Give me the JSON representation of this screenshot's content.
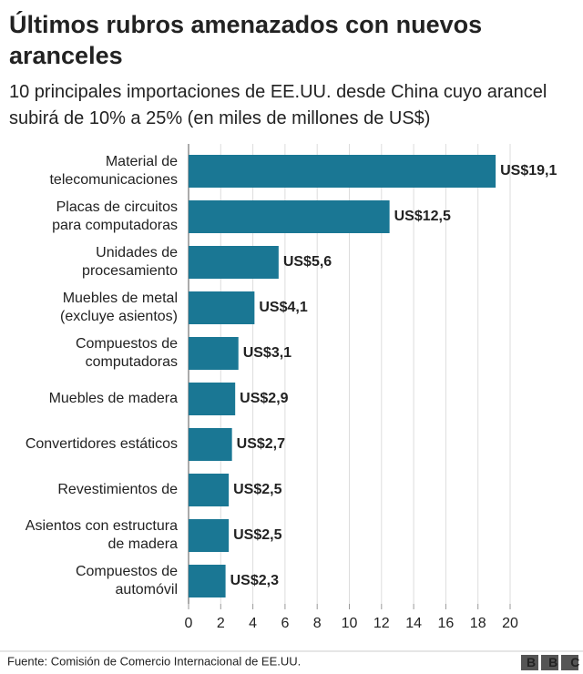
{
  "chart_data": {
    "type": "bar",
    "orientation": "horizontal",
    "title": "Últimos rubros amenazados con nuevos aranceles",
    "subtitle": "10 principales importaciones de EE.UU. desde China cuyo arancel subirá de 10% a 25% (en miles de millones de US$)",
    "categories": [
      "Material de\ntelecomunicaciones",
      "Placas de circuitos\npara computadoras",
      "Unidades de\nprocesamiento",
      "Muebles de metal\n(excluye asientos)",
      "Compuestos de\ncomputadoras",
      "Muebles de madera",
      "Convertidores estáticos",
      "Revestimientos de",
      "Asientos con estructura\nde madera",
      "Compuestos de\nautomóvil"
    ],
    "values": [
      19.1,
      12.5,
      5.6,
      4.1,
      3.1,
      2.9,
      2.7,
      2.5,
      2.5,
      2.3
    ],
    "value_labels": [
      "US$19,1",
      "US$12,5",
      "US$5,6",
      "US$4,1",
      "US$3,1",
      "US$2,9",
      "US$2,7",
      "US$2,5",
      "US$2,5",
      "US$2,3"
    ],
    "color": "#1a7794",
    "label_color": "#1a7794",
    "xlim": [
      0,
      20
    ],
    "xticks": [
      0,
      2,
      4,
      6,
      8,
      10,
      12,
      14,
      16,
      18,
      20
    ],
    "grid": true,
    "source": "Fuente: Comisión de Comercio Internacional de EE.UU.",
    "logo": "BBC"
  }
}
